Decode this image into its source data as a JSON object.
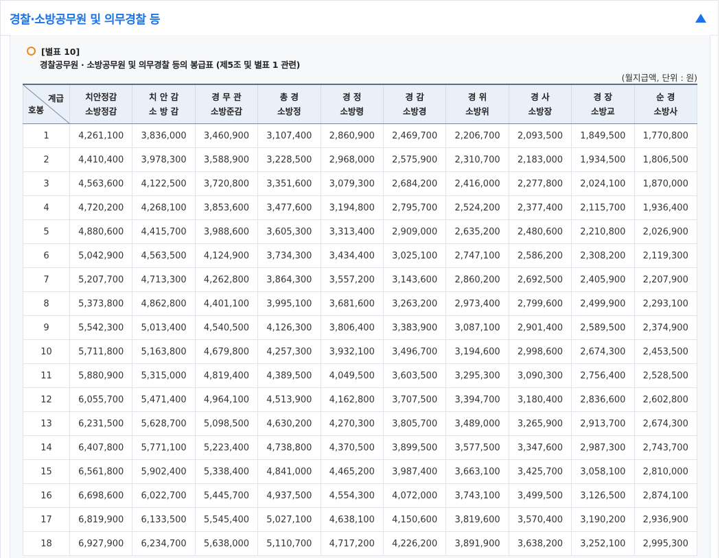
{
  "header": {
    "title": "경찰·소방공무원 및 의무경찰 등"
  },
  "caption": {
    "label": "[별표 10]",
    "subtitle": "경찰공무원 · 소방공무원 및 의무경찰 등의 봉급표 (제5조 및 별표 1 관련)",
    "unit": "(월지급액, 단위 : 원)"
  },
  "table": {
    "corner_top": "계급",
    "corner_bottom": "호봉",
    "columns": [
      {
        "line1": "치안정감",
        "line2": "소방정감"
      },
      {
        "line1": "치 안 감",
        "line2": "소 방 감"
      },
      {
        "line1": "경 무 관",
        "line2": "소방준감"
      },
      {
        "line1": "총 경",
        "line2": "소방정"
      },
      {
        "line1": "경 정",
        "line2": "소방령"
      },
      {
        "line1": "경 감",
        "line2": "소방경"
      },
      {
        "line1": "경 위",
        "line2": "소방위"
      },
      {
        "line1": "경 사",
        "line2": "소방장"
      },
      {
        "line1": "경 장",
        "line2": "소방교"
      },
      {
        "line1": "순 경",
        "line2": "소방사"
      }
    ],
    "rows": [
      [
        "1",
        "4,261,100",
        "3,836,000",
        "3,460,900",
        "3,107,400",
        "2,860,900",
        "2,469,700",
        "2,206,700",
        "2,093,500",
        "1,849,500",
        "1,770,800"
      ],
      [
        "2",
        "4,410,400",
        "3,978,300",
        "3,588,900",
        "3,228,500",
        "2,968,000",
        "2,575,900",
        "2,310,700",
        "2,183,000",
        "1,934,500",
        "1,806,500"
      ],
      [
        "3",
        "4,563,600",
        "4,122,500",
        "3,720,800",
        "3,351,600",
        "3,079,300",
        "2,684,200",
        "2,416,000",
        "2,277,800",
        "2,024,100",
        "1,870,000"
      ],
      [
        "4",
        "4,720,200",
        "4,268,100",
        "3,853,600",
        "3,477,600",
        "3,194,800",
        "2,795,700",
        "2,524,200",
        "2,377,400",
        "2,115,700",
        "1,936,400"
      ],
      [
        "5",
        "4,880,600",
        "4,415,700",
        "3,988,600",
        "3,605,300",
        "3,313,400",
        "2,909,000",
        "2,635,200",
        "2,480,600",
        "2,210,800",
        "2,026,900"
      ],
      [
        "6",
        "5,042,900",
        "4,563,500",
        "4,124,900",
        "3,734,300",
        "3,434,400",
        "3,025,100",
        "2,747,100",
        "2,586,200",
        "2,308,200",
        "2,119,300"
      ],
      [
        "7",
        "5,207,700",
        "4,713,300",
        "4,262,800",
        "3,864,300",
        "3,557,200",
        "3,143,600",
        "2,860,200",
        "2,692,500",
        "2,405,900",
        "2,207,900"
      ],
      [
        "8",
        "5,373,800",
        "4,862,800",
        "4,401,100",
        "3,995,100",
        "3,681,600",
        "3,263,200",
        "2,973,400",
        "2,799,600",
        "2,499,900",
        "2,293,100"
      ],
      [
        "9",
        "5,542,300",
        "5,013,400",
        "4,540,500",
        "4,126,300",
        "3,806,400",
        "3,383,900",
        "3,087,100",
        "2,901,400",
        "2,589,500",
        "2,374,900"
      ],
      [
        "10",
        "5,711,800",
        "5,163,800",
        "4,679,800",
        "4,257,300",
        "3,932,100",
        "3,496,700",
        "3,194,600",
        "2,998,600",
        "2,674,300",
        "2,453,500"
      ],
      [
        "11",
        "5,880,900",
        "5,315,000",
        "4,819,400",
        "4,389,500",
        "4,049,500",
        "3,603,500",
        "3,295,300",
        "3,090,300",
        "2,756,400",
        "2,528,500"
      ],
      [
        "12",
        "6,055,700",
        "5,471,400",
        "4,964,100",
        "4,513,900",
        "4,162,800",
        "3,707,500",
        "3,394,700",
        "3,180,400",
        "2,836,600",
        "2,602,800"
      ],
      [
        "13",
        "6,231,500",
        "5,628,700",
        "5,098,500",
        "4,630,200",
        "4,270,300",
        "3,805,700",
        "3,489,000",
        "3,265,900",
        "2,913,700",
        "2,674,300"
      ],
      [
        "14",
        "6,407,800",
        "5,771,100",
        "5,223,400",
        "4,738,800",
        "4,370,500",
        "3,899,500",
        "3,577,500",
        "3,347,600",
        "2,987,300",
        "2,743,700"
      ],
      [
        "15",
        "6,561,800",
        "5,902,400",
        "5,338,400",
        "4,841,000",
        "4,465,200",
        "3,987,400",
        "3,663,100",
        "3,425,700",
        "3,058,100",
        "2,810,000"
      ],
      [
        "16",
        "6,698,600",
        "6,022,700",
        "5,445,700",
        "4,937,500",
        "4,554,300",
        "4,072,000",
        "3,743,100",
        "3,499,500",
        "3,126,500",
        "2,874,100"
      ],
      [
        "17",
        "6,819,900",
        "6,133,500",
        "5,545,400",
        "5,027,100",
        "4,638,100",
        "4,150,600",
        "3,819,600",
        "3,570,400",
        "3,190,200",
        "2,936,900"
      ],
      [
        "18",
        "6,927,900",
        "6,234,700",
        "5,638,000",
        "5,110,700",
        "4,717,200",
        "4,226,200",
        "3,891,900",
        "3,638,200",
        "3,252,100",
        "2,995,300"
      ]
    ]
  },
  "colors": {
    "title_blue": "#1a73e8",
    "bullet_orange": "#f08a1c",
    "header_bg": "#eaf0f8"
  },
  "icons": {
    "collapse": "triangle-up-icon",
    "bullet": "circle-bullet-icon"
  }
}
